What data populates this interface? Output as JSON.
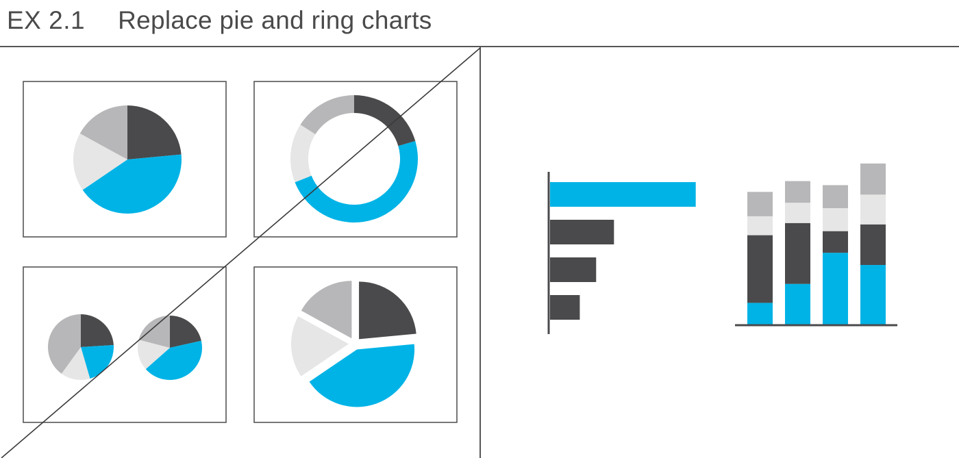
{
  "header": {
    "code": "EX 2.1",
    "title": "Replace pie and ring charts"
  },
  "colors": {
    "dark": "#4a4a4c",
    "blue": "#00b3e6",
    "mid_gray": "#b7b7b9",
    "light_gray": "#e6e6e6",
    "frame": "#555555"
  },
  "panels": {
    "left": {
      "status": "crossed-out",
      "examples": [
        {
          "name": "pie",
          "shares": [
            0.235,
            0.42,
            0.175,
            0.17
          ]
        },
        {
          "name": "ring",
          "shares": [
            0.205,
            0.485,
            0.15,
            0.16
          ]
        },
        {
          "name": "two-pies",
          "pies": [
            [
              0.24,
              0.215,
              0.145,
              0.4
            ],
            [
              0.215,
              0.42,
              0.155,
              0.21
            ]
          ]
        },
        {
          "name": "exploded-pie",
          "shares": [
            0.235,
            0.42,
            0.175,
            0.17
          ]
        }
      ]
    },
    "right": {
      "horizontal_bars": [
        0.98,
        0.43,
        0.31,
        0.2
      ],
      "stacked_columns": [
        {
          "blue": 0.16,
          "dark": 0.5,
          "light_gray": 0.14,
          "mid_gray": 0.18
        },
        {
          "blue": 0.3,
          "dark": 0.45,
          "light_gray": 0.15,
          "mid_gray": 0.16
        },
        {
          "blue": 0.53,
          "dark": 0.16,
          "light_gray": 0.17,
          "mid_gray": 0.17
        },
        {
          "blue": 0.44,
          "dark": 0.3,
          "light_gray": 0.22,
          "mid_gray": 0.23
        }
      ]
    }
  }
}
